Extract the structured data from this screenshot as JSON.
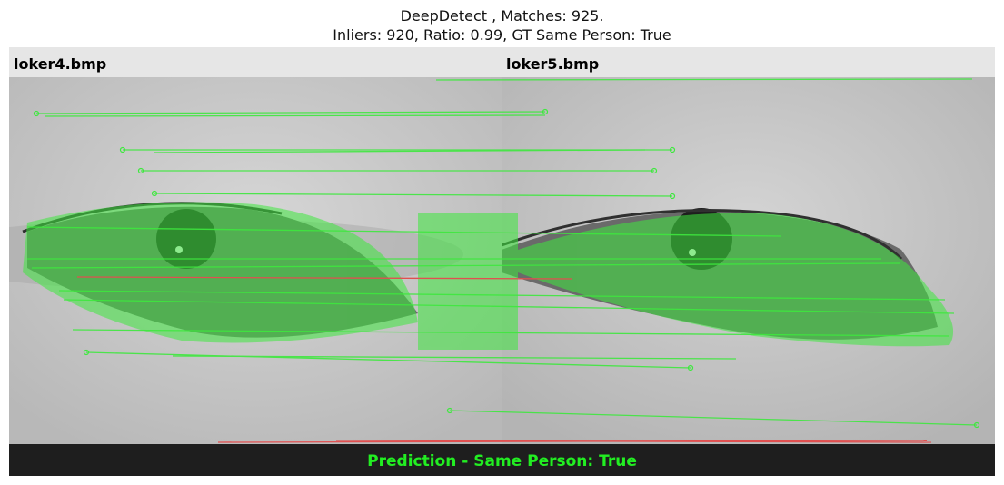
{
  "title": {
    "line1": "DeepDetect , Matches: 925.",
    "line2": "Inliers: 920, Ratio: 0.99, GT Same Person: True"
  },
  "images": {
    "left_label": "loker4.bmp",
    "right_label": "loker5.bmp"
  },
  "prediction": "Prediction - Same Person: True",
  "colors": {
    "inlier": "#3ee83e",
    "outlier": "#e05050",
    "prediction_text": "#22ee22",
    "footer_bg": "#1e1e1e",
    "header_bg": "#e6e6e6"
  }
}
